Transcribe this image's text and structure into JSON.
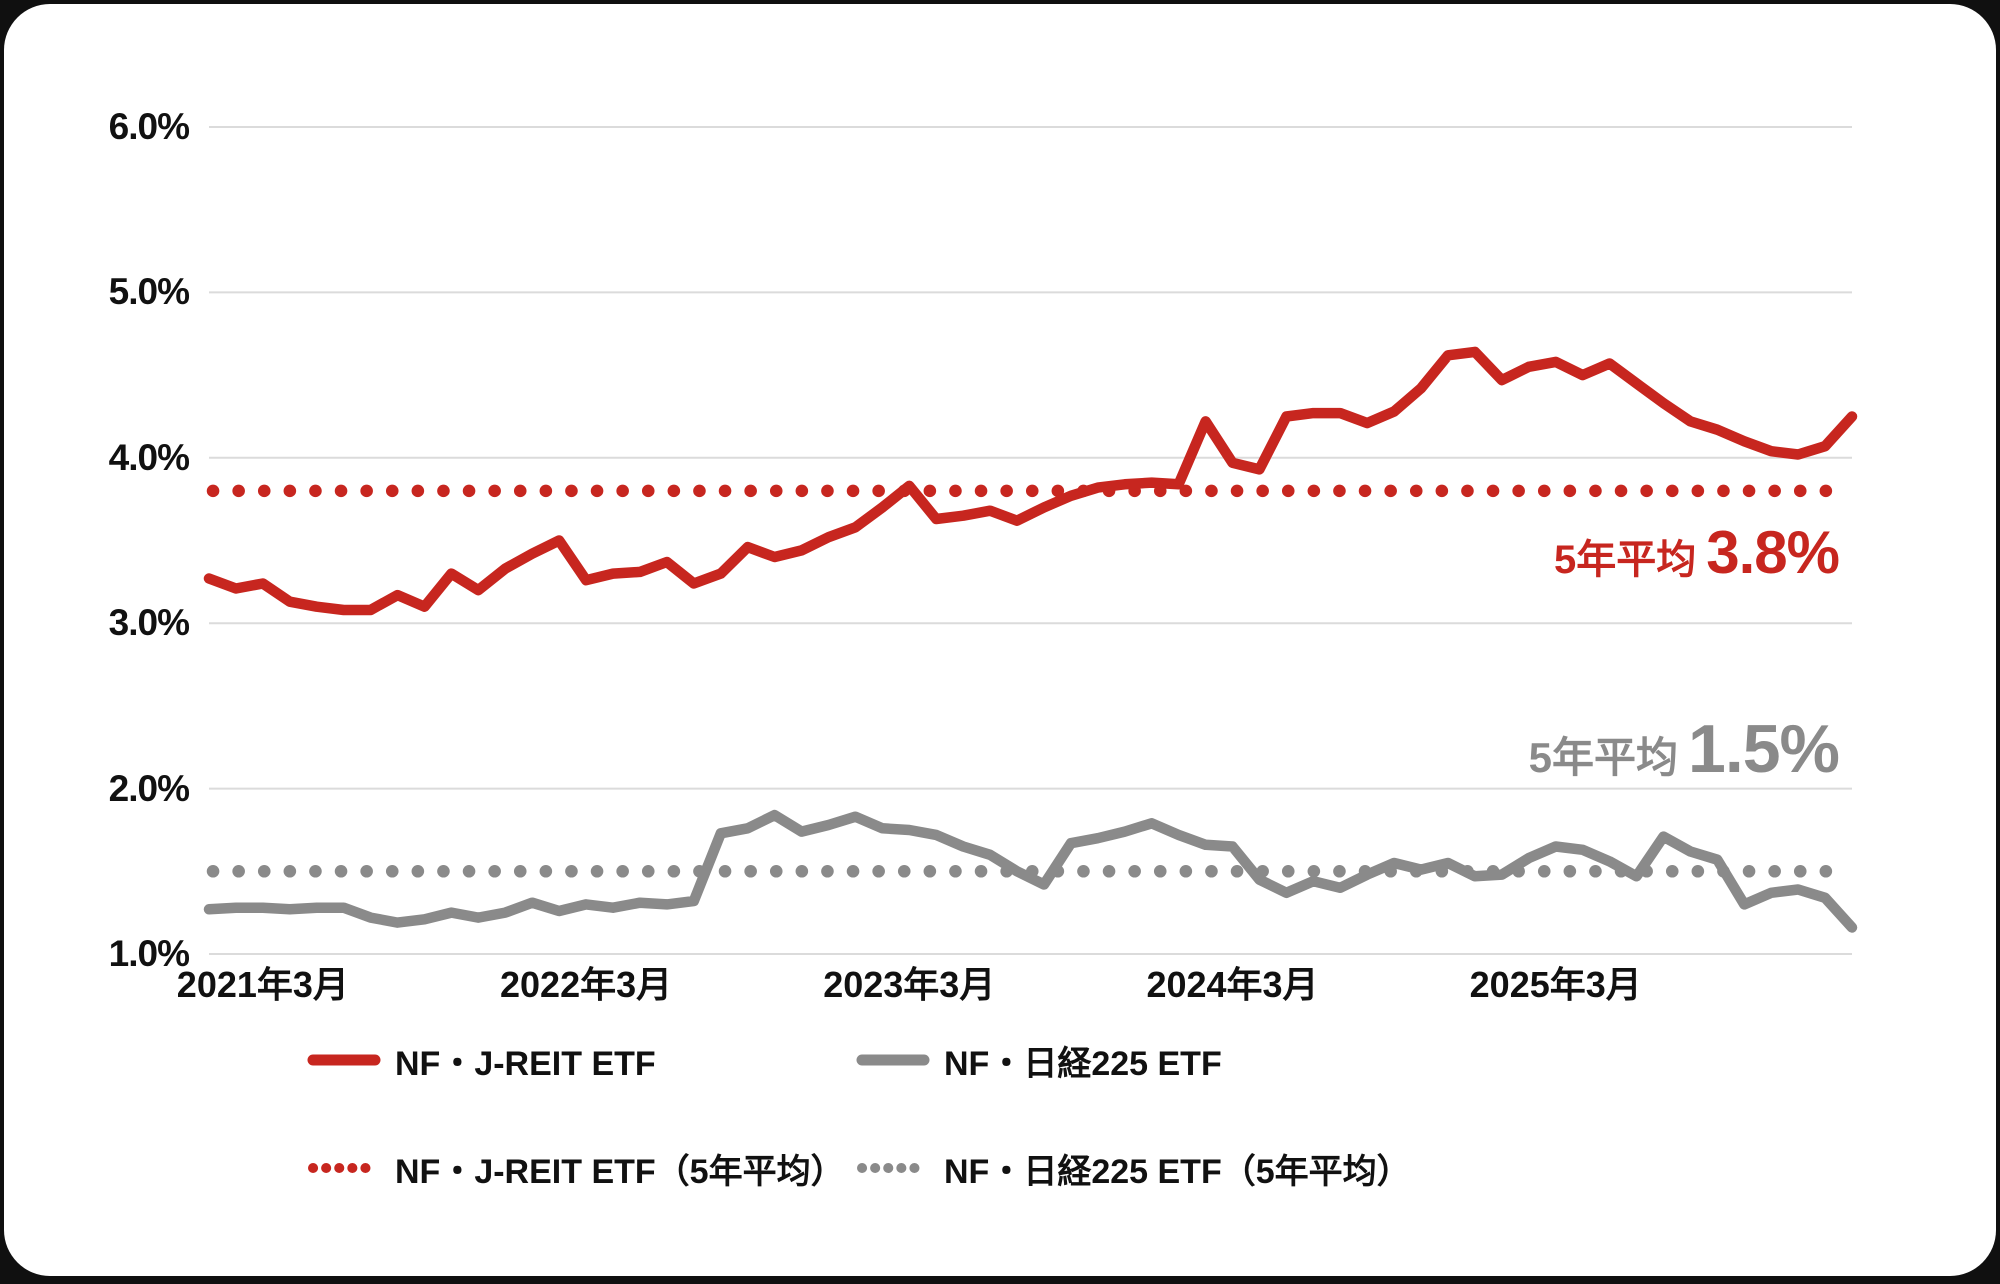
{
  "page": {
    "background_color": "#101010",
    "card_color": "#ffffff"
  },
  "colors": {
    "reit_red": "#C7261F",
    "nikkei_gray": "#8A8A8A",
    "grid": "#DBDBDB",
    "tick_text": "#111111"
  },
  "chart_data": {
    "type": "line",
    "title": "",
    "xlabel": "",
    "ylabel": "",
    "x_unit": "month",
    "x_range_note": "monthly points from 2021-01 to 2026-02",
    "ylim": [
      1.0,
      6.0
    ],
    "grid": "horizontal",
    "legend_position": "bottom",
    "y_ticks": [
      {
        "label": "6.0%",
        "value": 6.0
      },
      {
        "label": "5.0%",
        "value": 5.0
      },
      {
        "label": "4.0%",
        "value": 4.0
      },
      {
        "label": "3.0%",
        "value": 3.0
      },
      {
        "label": "2.0%",
        "value": 2.0
      },
      {
        "label": "1.0%",
        "value": 1.0
      }
    ],
    "x_ticks": [
      {
        "label": "2021年3月",
        "index": 2
      },
      {
        "label": "2022年3月",
        "index": 14
      },
      {
        "label": "2023年3月",
        "index": 26
      },
      {
        "label": "2024年3月",
        "index": 38
      },
      {
        "label": "2025年3月",
        "index": 50
      }
    ],
    "series": [
      {
        "name": "NF・J-REIT ETF",
        "style": "solid",
        "color": "#C7261F",
        "values": [
          3.27,
          3.21,
          3.24,
          3.13,
          3.1,
          3.08,
          3.08,
          3.17,
          3.1,
          3.3,
          3.2,
          3.33,
          3.42,
          3.5,
          3.26,
          3.3,
          3.31,
          3.37,
          3.24,
          3.3,
          3.46,
          3.4,
          3.44,
          3.52,
          3.58,
          3.7,
          3.83,
          3.63,
          3.65,
          3.68,
          3.62,
          3.7,
          3.77,
          3.82,
          3.84,
          3.85,
          3.84,
          4.22,
          3.97,
          3.93,
          4.25,
          4.27,
          4.27,
          4.21,
          4.28,
          4.42,
          4.62,
          4.64,
          4.47,
          4.55,
          4.58,
          4.5,
          4.57,
          4.45,
          4.33,
          4.22,
          4.17,
          4.1,
          4.04,
          4.02,
          4.07,
          4.25
        ]
      },
      {
        "name": "NF・日経225 ETF",
        "style": "solid",
        "color": "#8A8A8A",
        "values": [
          1.27,
          1.28,
          1.28,
          1.27,
          1.28,
          1.28,
          1.22,
          1.19,
          1.21,
          1.25,
          1.22,
          1.25,
          1.31,
          1.26,
          1.3,
          1.28,
          1.31,
          1.3,
          1.32,
          1.73,
          1.76,
          1.84,
          1.74,
          1.78,
          1.83,
          1.76,
          1.75,
          1.72,
          1.65,
          1.6,
          1.5,
          1.42,
          1.67,
          1.7,
          1.74,
          1.79,
          1.72,
          1.66,
          1.65,
          1.45,
          1.37,
          1.44,
          1.4,
          1.48,
          1.55,
          1.51,
          1.55,
          1.47,
          1.48,
          1.58,
          1.65,
          1.63,
          1.56,
          1.47,
          1.71,
          1.62,
          1.57,
          1.3,
          1.37,
          1.39,
          1.34,
          1.16
        ]
      },
      {
        "name": "NF・J-REIT ETF（5年平均）",
        "style": "dotted",
        "color": "#C7261F",
        "average_value": 3.8
      },
      {
        "name": "NF・日経225 ETF（5年平均）",
        "style": "dotted",
        "color": "#8A8A8A",
        "average_value": 1.5
      }
    ],
    "annotations": [
      {
        "prefix": "5年平均",
        "value": "3.8%",
        "color": "#C7261F"
      },
      {
        "prefix": "5年平均",
        "value": "1.5%",
        "color": "#8A8A8A"
      }
    ]
  },
  "legend": {
    "items": [
      {
        "label": "NF・J-REIT ETF",
        "style": "solid",
        "color": "#C7261F"
      },
      {
        "label": "NF・日経225 ETF",
        "style": "solid",
        "color": "#8A8A8A"
      },
      {
        "label": "NF・J-REIT ETF（5年平均）",
        "style": "dotted",
        "color": "#C7261F"
      },
      {
        "label": "NF・日経225 ETF（5年平均）",
        "style": "dotted",
        "color": "#8A8A8A"
      }
    ]
  }
}
